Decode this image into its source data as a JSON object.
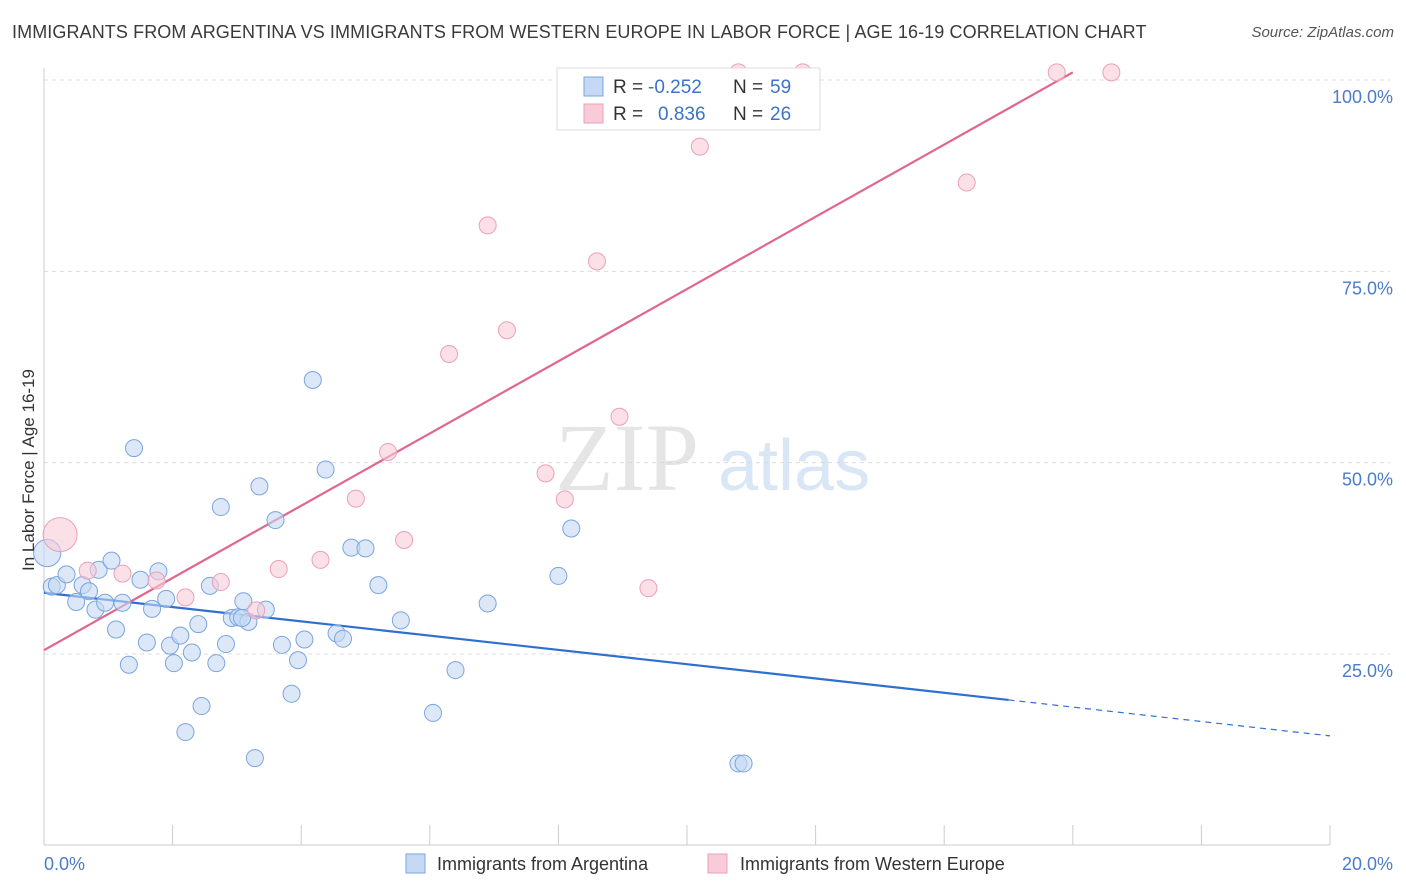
{
  "header": {
    "title": "IMMIGRANTS FROM ARGENTINA VS IMMIGRANTS FROM WESTERN EUROPE IN LABOR FORCE | AGE 16-19 CORRELATION CHART",
    "source": "Source: ZipAtlas.com"
  },
  "watermark": {
    "zip": "ZIP",
    "atlas": "atlas"
  },
  "stats": {
    "blue": {
      "r_label": "R =",
      "r_value": "-0.252",
      "n_label": "N =",
      "n_value": "59"
    },
    "pink": {
      "r_label": "R =",
      "r_value": "0.836",
      "n_label": "N =",
      "n_value": "26"
    }
  },
  "colors": {
    "blue": "#5b8fd9",
    "blue_line": "#2f6fd0",
    "pink": "#f0a0b8",
    "pink_line": "#e0668f",
    "tick": "#4a7cc9"
  },
  "chart_data": {
    "type": "scatter",
    "title": "IMMIGRANTS FROM ARGENTINA VS IMMIGRANTS FROM WESTERN EUROPE IN LABOR FORCE | AGE 16-19 CORRELATION CHART",
    "xlabel": "",
    "ylabel": "In Labor Force | Age 16-19",
    "xlim": [
      0,
      20
    ],
    "ylim": [
      0,
      105
    ],
    "x_tick_labels": [
      "0.0%",
      "20.0%"
    ],
    "y_ticks": [
      25,
      50,
      75,
      100
    ],
    "y_tick_labels": [
      "25.0%",
      "50.0%",
      "75.0%",
      "100.0%"
    ],
    "grid": true,
    "legend_position": "bottom-center",
    "series": [
      {
        "name": "Immigrants from Argentina",
        "color": "#5b8fd9",
        "trend": {
          "x0": 0,
          "y0": 33.0,
          "x1": 15.0,
          "y1": 19.0,
          "dashed_to_x": 20.0,
          "dashed_to_y": 14.3
        },
        "points": [
          {
            "x": 0.05,
            "y": 38.2,
            "s": 1.6
          },
          {
            "x": 0.12,
            "y": 33.8,
            "s": 1
          },
          {
            "x": 0.2,
            "y": 34.0,
            "s": 1
          },
          {
            "x": 0.35,
            "y": 35.4,
            "s": 1
          },
          {
            "x": 0.5,
            "y": 31.8,
            "s": 1
          },
          {
            "x": 0.6,
            "y": 34.0,
            "s": 1
          },
          {
            "x": 0.7,
            "y": 33.2,
            "s": 1
          },
          {
            "x": 0.8,
            "y": 30.8,
            "s": 1
          },
          {
            "x": 0.85,
            "y": 36.0,
            "s": 1
          },
          {
            "x": 0.95,
            "y": 31.7,
            "s": 1
          },
          {
            "x": 1.05,
            "y": 37.2,
            "s": 1
          },
          {
            "x": 1.12,
            "y": 28.2,
            "s": 1
          },
          {
            "x": 1.22,
            "y": 31.7,
            "s": 1
          },
          {
            "x": 1.32,
            "y": 23.6,
            "s": 1
          },
          {
            "x": 1.4,
            "y": 51.9,
            "s": 1
          },
          {
            "x": 1.5,
            "y": 34.7,
            "s": 1
          },
          {
            "x": 1.6,
            "y": 26.5,
            "s": 1
          },
          {
            "x": 1.68,
            "y": 30.9,
            "s": 1
          },
          {
            "x": 1.78,
            "y": 35.8,
            "s": 1
          },
          {
            "x": 1.9,
            "y": 32.2,
            "s": 1
          },
          {
            "x": 1.96,
            "y": 26.1,
            "s": 1
          },
          {
            "x": 2.02,
            "y": 23.8,
            "s": 1
          },
          {
            "x": 2.12,
            "y": 27.4,
            "s": 1
          },
          {
            "x": 2.2,
            "y": 14.8,
            "s": 1
          },
          {
            "x": 2.3,
            "y": 25.2,
            "s": 1
          },
          {
            "x": 2.4,
            "y": 28.9,
            "s": 1
          },
          {
            "x": 2.45,
            "y": 18.2,
            "s": 1
          },
          {
            "x": 2.58,
            "y": 33.9,
            "s": 1
          },
          {
            "x": 2.68,
            "y": 23.8,
            "s": 1
          },
          {
            "x": 2.75,
            "y": 44.2,
            "s": 1
          },
          {
            "x": 2.83,
            "y": 26.3,
            "s": 1
          },
          {
            "x": 2.92,
            "y": 29.7,
            "s": 1
          },
          {
            "x": 3.02,
            "y": 29.8,
            "s": 1
          },
          {
            "x": 3.1,
            "y": 31.9,
            "s": 1
          },
          {
            "x": 3.18,
            "y": 29.2,
            "s": 1
          },
          {
            "x": 3.28,
            "y": 11.4,
            "s": 1
          },
          {
            "x": 3.35,
            "y": 46.9,
            "s": 1
          },
          {
            "x": 3.45,
            "y": 30.8,
            "s": 1
          },
          {
            "x": 3.6,
            "y": 42.5,
            "s": 1
          },
          {
            "x": 3.7,
            "y": 26.2,
            "s": 1
          },
          {
            "x": 3.85,
            "y": 19.8,
            "s": 1
          },
          {
            "x": 3.95,
            "y": 24.2,
            "s": 1
          },
          {
            "x": 4.05,
            "y": 26.9,
            "s": 1
          },
          {
            "x": 4.18,
            "y": 60.8,
            "s": 1
          },
          {
            "x": 4.38,
            "y": 49.1,
            "s": 1
          },
          {
            "x": 4.55,
            "y": 27.7,
            "s": 1
          },
          {
            "x": 4.65,
            "y": 27.0,
            "s": 1
          },
          {
            "x": 4.78,
            "y": 38.9,
            "s": 1
          },
          {
            "x": 5.0,
            "y": 38.8,
            "s": 1
          },
          {
            "x": 5.2,
            "y": 34.0,
            "s": 1
          },
          {
            "x": 5.55,
            "y": 29.4,
            "s": 1
          },
          {
            "x": 6.05,
            "y": 17.3,
            "s": 1
          },
          {
            "x": 6.4,
            "y": 22.9,
            "s": 1
          },
          {
            "x": 6.9,
            "y": 31.6,
            "s": 1
          },
          {
            "x": 8.0,
            "y": 35.2,
            "s": 1
          },
          {
            "x": 8.2,
            "y": 41.4,
            "s": 1
          },
          {
            "x": 10.8,
            "y": 10.7,
            "s": 1
          },
          {
            "x": 10.88,
            "y": 10.7,
            "s": 1
          },
          {
            "x": 3.08,
            "y": 29.7,
            "s": 1
          }
        ]
      },
      {
        "name": "Immigrants from Western Europe",
        "color": "#f0a0b8",
        "trend": {
          "x0": 0,
          "y0": 25.5,
          "x1": 16.0,
          "y1": 101.0
        },
        "points": [
          {
            "x": 0.25,
            "y": 40.6,
            "s": 2.0
          },
          {
            "x": 0.68,
            "y": 35.9,
            "s": 1
          },
          {
            "x": 1.22,
            "y": 35.5,
            "s": 1
          },
          {
            "x": 1.75,
            "y": 34.6,
            "s": 1
          },
          {
            "x": 2.2,
            "y": 32.4,
            "s": 1
          },
          {
            "x": 2.75,
            "y": 34.4,
            "s": 1
          },
          {
            "x": 3.3,
            "y": 30.7,
            "s": 1
          },
          {
            "x": 3.65,
            "y": 36.1,
            "s": 1
          },
          {
            "x": 4.3,
            "y": 37.3,
            "s": 1
          },
          {
            "x": 4.85,
            "y": 45.3,
            "s": 1
          },
          {
            "x": 5.35,
            "y": 51.4,
            "s": 1
          },
          {
            "x": 5.6,
            "y": 39.9,
            "s": 1
          },
          {
            "x": 6.3,
            "y": 64.2,
            "s": 1
          },
          {
            "x": 6.9,
            "y": 81.0,
            "s": 1
          },
          {
            "x": 7.2,
            "y": 67.3,
            "s": 1
          },
          {
            "x": 7.8,
            "y": 48.6,
            "s": 1
          },
          {
            "x": 8.1,
            "y": 45.2,
            "s": 1
          },
          {
            "x": 8.6,
            "y": 76.3,
            "s": 1
          },
          {
            "x": 8.95,
            "y": 56.0,
            "s": 1
          },
          {
            "x": 9.4,
            "y": 33.6,
            "s": 1
          },
          {
            "x": 10.2,
            "y": 91.3,
            "s": 1
          },
          {
            "x": 10.8,
            "y": 101.0,
            "s": 1
          },
          {
            "x": 11.8,
            "y": 101.0,
            "s": 1
          },
          {
            "x": 14.35,
            "y": 86.6,
            "s": 1
          },
          {
            "x": 15.75,
            "y": 101.0,
            "s": 1
          },
          {
            "x": 16.6,
            "y": 101.0,
            "s": 1
          }
        ]
      }
    ]
  }
}
